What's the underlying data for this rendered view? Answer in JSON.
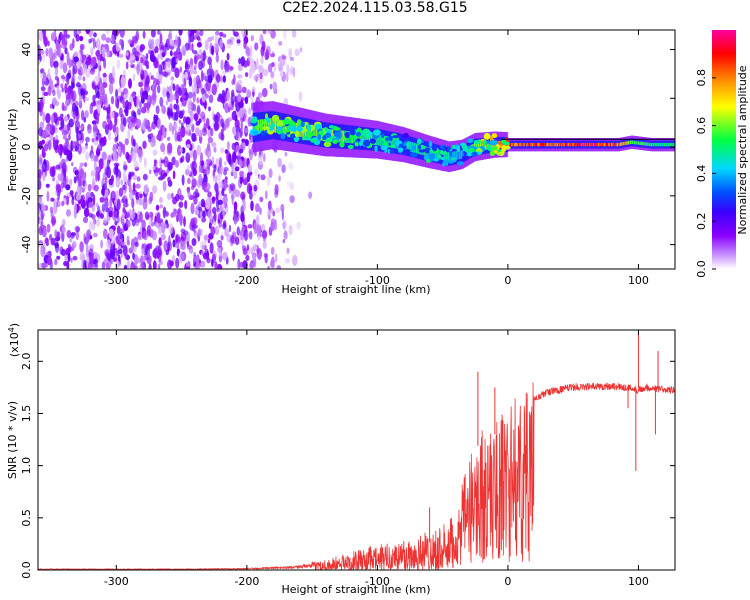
{
  "title": "C2E2.2024.115.03.58.G15",
  "chart_data": [
    {
      "type": "heatmap",
      "xlabel": "Height of straight line (km)",
      "ylabel": "Frequency (Hz)",
      "xlim": [
        -360,
        128
      ],
      "ylim": [
        -50,
        48
      ],
      "x_ticks": [
        -300,
        -200,
        -100,
        0,
        100
      ],
      "y_ticks": [
        -40,
        -20,
        0,
        20,
        40
      ],
      "colorbar": {
        "label": "Normalized spectral amplitude",
        "range": [
          0.0,
          1.0
        ],
        "ticks": [
          0.0,
          0.2,
          0.4,
          0.6,
          0.8
        ],
        "tick_labels": [
          "0.0",
          "0.2",
          "0.4",
          "0.6",
          "0.8"
        ],
        "colors": [
          "#ffffff",
          "#c890ff",
          "#8a00ff",
          "#3a00ff",
          "#0050ff",
          "#00d8ff",
          "#00ff40",
          "#ffff00",
          "#ff8000",
          "#ff0000",
          "#ff00a0"
        ]
      },
      "noise_region_x": [
        -360,
        -170
      ],
      "signal_ridge": {
        "x": [
          -195,
          -180,
          -160,
          -140,
          -120,
          -100,
          -80,
          -60,
          -45,
          -35,
          -25,
          -10,
          0,
          30,
          60,
          85,
          95,
          110,
          128
        ],
        "y": [
          8,
          9,
          7,
          5,
          4,
          3,
          1,
          -2,
          -4,
          -3,
          0,
          1,
          1,
          1,
          1,
          1,
          2,
          1,
          1
        ],
        "amplitude": [
          0.55,
          0.6,
          0.6,
          0.6,
          0.55,
          0.5,
          0.45,
          0.5,
          0.45,
          0.4,
          0.6,
          0.75,
          0.8,
          0.85,
          0.9,
          0.8,
          0.6,
          0.5,
          0.5
        ]
      }
    },
    {
      "type": "line",
      "xlabel": "Height of straight line (km)",
      "ylabel": "SNR (10 * v/v)",
      "multiplier_label": "(x10",
      "multiplier_exp": "4",
      "xlim": [
        -360,
        128
      ],
      "ylim": [
        0,
        2.3
      ],
      "x_ticks": [
        -300,
        -200,
        -100,
        0,
        100
      ],
      "y_ticks": [
        0.0,
        0.5,
        1.0,
        1.5,
        2.0
      ],
      "y_tick_labels": [
        "0.0",
        "0.5",
        "1.0",
        "1.5",
        "2.0"
      ],
      "series": [
        {
          "color": "#ee3333",
          "envelope_x": [
            -360,
            -250,
            -200,
            -170,
            -150,
            -130,
            -110,
            -90,
            -70,
            -55,
            -45,
            -40,
            -35,
            -30,
            -25,
            -20,
            -15,
            -10,
            0,
            10,
            20,
            30,
            50,
            80,
            95,
            100,
            105,
            115,
            128
          ],
          "envelope_y": [
            0.01,
            0.01,
            0.015,
            0.03,
            0.05,
            0.09,
            0.14,
            0.18,
            0.23,
            0.28,
            0.3,
            0.45,
            0.75,
            0.95,
            1.15,
            1.25,
            1.2,
            1.3,
            1.45,
            1.55,
            1.65,
            1.72,
            1.77,
            1.78,
            1.76,
            1.74,
            1.77,
            1.75,
            1.74
          ]
        }
      ],
      "spikes": [
        {
          "x": -60,
          "y": 0.6
        },
        {
          "x": -23,
          "y": 1.9
        },
        {
          "x": -10,
          "y": 1.75
        },
        {
          "x": 100,
          "y": 2.28
        },
        {
          "x": 98,
          "y": 0.95
        },
        {
          "x": 115,
          "y": 2.1
        },
        {
          "x": 113,
          "y": 1.3
        },
        {
          "x": 92,
          "y": 1.55
        }
      ]
    }
  ]
}
